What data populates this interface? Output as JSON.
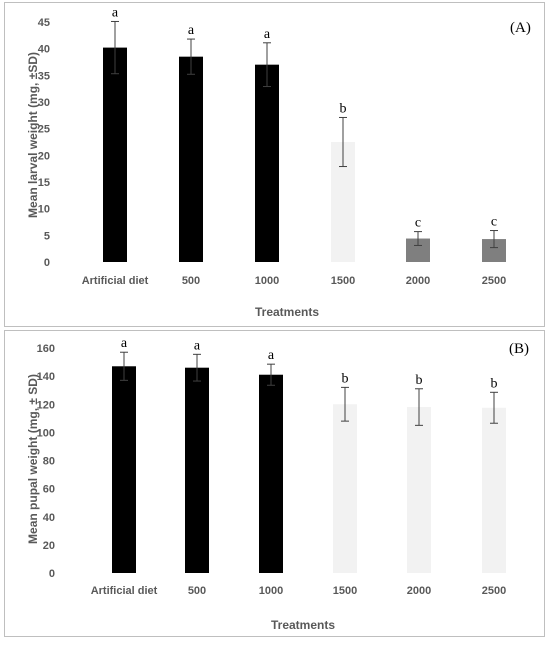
{
  "chart_data": [
    {
      "type": "bar",
      "panel_label": "(A)",
      "categories": [
        "Artificial diet",
        "500",
        "1000",
        "1500",
        "2000",
        "2500"
      ],
      "values": [
        40.2,
        38.5,
        37.0,
        22.5,
        4.4,
        4.3
      ],
      "errors": [
        4.9,
        3.3,
        4.1,
        4.6,
        1.3,
        1.6
      ],
      "significance": [
        "a",
        "a",
        "a",
        "b",
        "c",
        "c"
      ],
      "bar_colors": [
        "#000000",
        "#000000",
        "#000000",
        "#f2f2f2",
        "#7f7f7f",
        "#7f7f7f"
      ],
      "xlabel": "Treatments",
      "ylabel": "Mean larval weight (mg, ±SD)",
      "ylim": [
        0,
        45
      ],
      "yticks": [
        0,
        5,
        10,
        15,
        20,
        25,
        30,
        35,
        40,
        45
      ],
      "grid": false
    },
    {
      "type": "bar",
      "panel_label": "(B)",
      "categories": [
        "Artificial diet",
        "500",
        "1000",
        "1500",
        "2000",
        "2500"
      ],
      "values": [
        147,
        146,
        141,
        120,
        118,
        117.5
      ],
      "errors": [
        10,
        9.5,
        7.5,
        12,
        13,
        11
      ],
      "significance": [
        "a",
        "a",
        "a",
        "b",
        "b",
        "b"
      ],
      "bar_colors": [
        "#000000",
        "#000000",
        "#000000",
        "#f2f2f2",
        "#f2f2f2",
        "#f2f2f2"
      ],
      "xlabel": "Treatments",
      "ylabel": "Mean pupal weight (mg, ± SD)",
      "ylim": [
        0,
        160
      ],
      "yticks": [
        0,
        20,
        40,
        60,
        80,
        100,
        120,
        140,
        160
      ],
      "grid": false
    }
  ]
}
